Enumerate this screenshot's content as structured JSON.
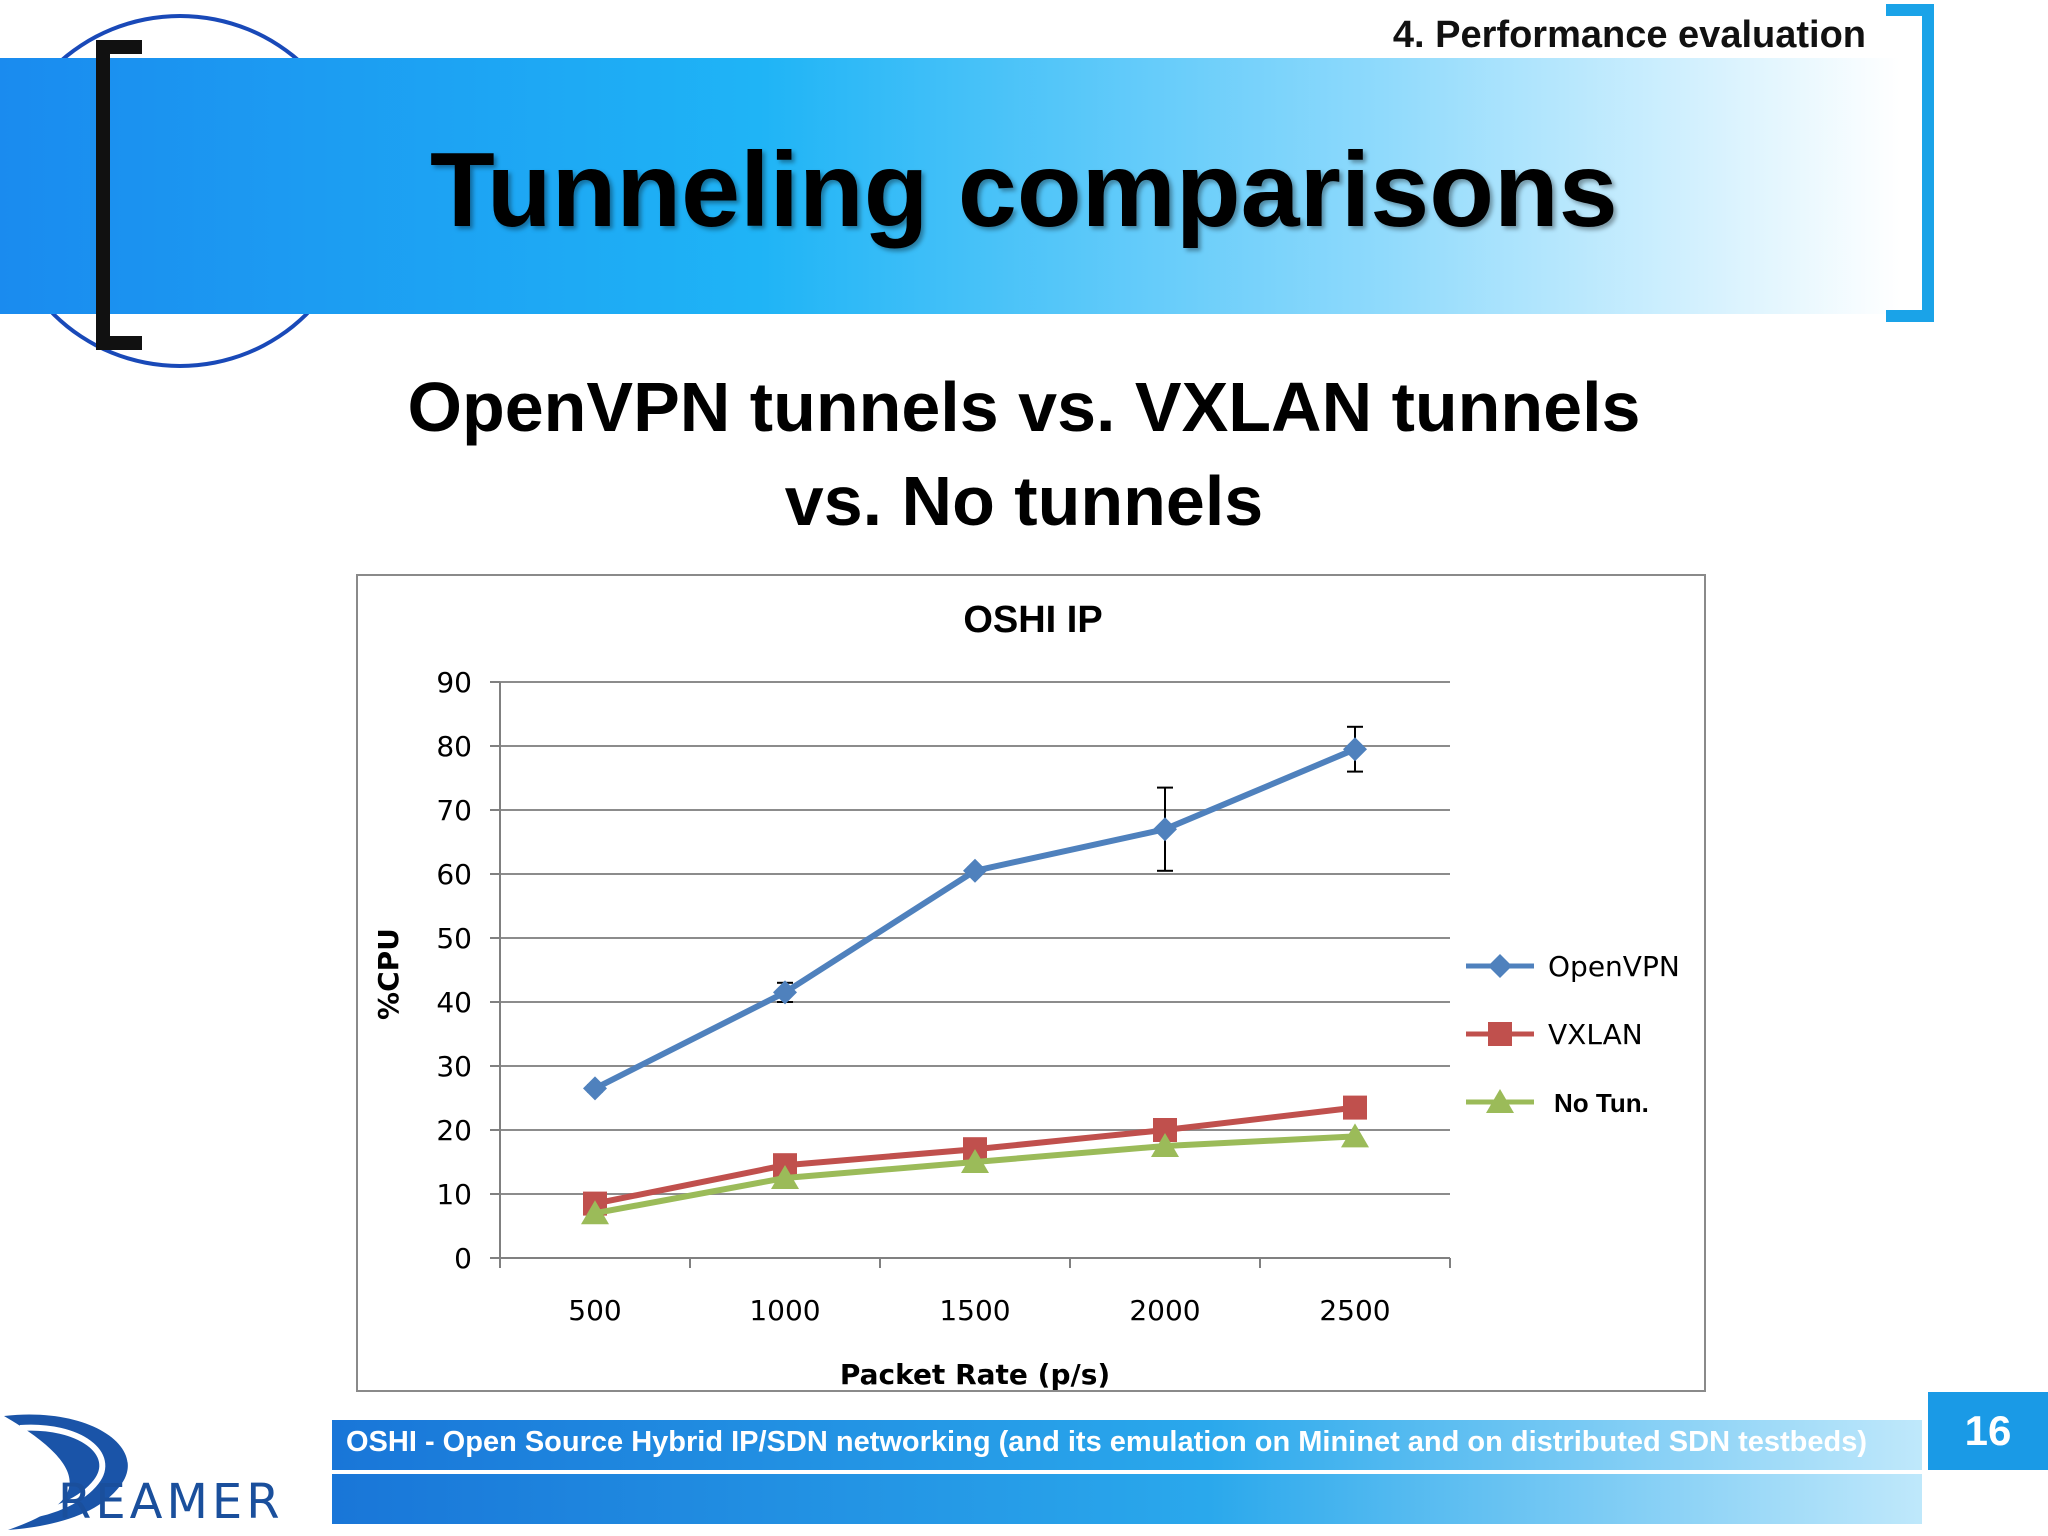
{
  "header": {
    "section": "4. Performance evaluation",
    "title": "Tunneling comparisons"
  },
  "subtitle": {
    "line1": "OpenVPN tunnels vs. VXLAN tunnels",
    "line2": "vs. No tunnels"
  },
  "chart_data": {
    "type": "line",
    "title": "OSHI IP",
    "xlabel": "Packet Rate (p/s)",
    "ylabel": "%CPU",
    "categories": [
      "500",
      "1000",
      "1500",
      "2000",
      "2500"
    ],
    "ylim": [
      0,
      90
    ],
    "yticks": [
      0,
      10,
      20,
      30,
      40,
      50,
      60,
      70,
      80,
      90
    ],
    "grid": true,
    "legend_position": "right",
    "series": [
      {
        "name": "OpenVPN",
        "values": [
          26.5,
          41.5,
          60.5,
          67,
          79.5
        ],
        "error": [
          0.5,
          1.5,
          0.5,
          6.5,
          3.5
        ],
        "marker": "diamond",
        "color": "#4f81bd"
      },
      {
        "name": "VXLAN",
        "values": [
          8.5,
          14.5,
          17,
          20,
          23.5
        ],
        "marker": "square",
        "color": "#c0504d"
      },
      {
        "name": "No Tun.",
        "values": [
          7,
          12.5,
          15,
          17.5,
          19
        ],
        "marker": "triangle",
        "color": "#9bbb59"
      }
    ]
  },
  "footer": {
    "text": "OSHI - Open Source Hybrid IP/SDN networking (and its emulation on Mininet and on distributed SDN testbeds)",
    "page": "16",
    "logo_text": "REAMER"
  }
}
